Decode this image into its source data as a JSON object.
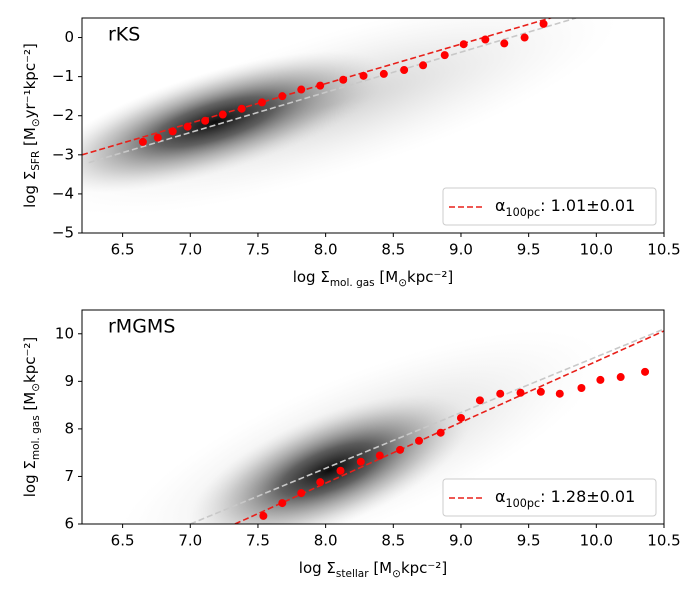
{
  "chart_data": [
    {
      "type": "scatter",
      "title": "rKS",
      "xlabel": [
        "log Σ",
        "mol. gas",
        " [M",
        "⊙",
        "kpc⁻²]"
      ],
      "ylabel": [
        "log Σ",
        "SFR",
        " [M",
        "⊙",
        "yr⁻¹kpc⁻²]"
      ],
      "xlim": [
        6.2,
        10.5
      ],
      "xticks": [
        6.5,
        {
          "value": 7,
          "label": "7.0"
        },
        7.5,
        {
          "value": 8,
          "label": "8.0"
        },
        8.5,
        {
          "value": 9,
          "label": "9.0"
        },
        9.5,
        {
          "value": 10,
          "label": "10.0"
        },
        10.5
      ],
      "ylim": [
        -5,
        0.5
      ],
      "yticks": [
        {
          "value": -5,
          "label": "−5"
        },
        {
          "value": -4,
          "label": "−4"
        },
        {
          "value": -3,
          "label": "−3"
        },
        {
          "value": -2,
          "label": "−2"
        },
        {
          "value": -1,
          "label": "−1"
        },
        0
      ],
      "points": {
        "color": "#ff0000",
        "x": [
          6.65,
          6.76,
          6.87,
          6.98,
          7.11,
          7.24,
          7.38,
          7.53,
          7.68,
          7.82,
          7.96,
          8.13,
          8.28,
          8.43,
          8.58,
          8.72,
          8.88,
          9.02,
          9.18,
          9.32,
          9.47,
          9.61
        ],
        "values": [
          -2.67,
          -2.56,
          -2.4,
          -2.28,
          -2.13,
          -1.97,
          -1.82,
          -1.66,
          -1.5,
          -1.33,
          -1.23,
          -1.08,
          -0.98,
          -0.93,
          -0.83,
          -0.71,
          -0.45,
          -0.17,
          -0.05,
          -0.15,
          0.0,
          0.35
        ]
      },
      "fit": {
        "color": "#e8201a",
        "x": [
          6.2,
          9.7
        ],
        "values": [
          -3.0,
          0.54
        ],
        "legend": [
          "α",
          "100pc",
          ": 1.01±0.01"
        ]
      },
      "reference": {
        "color": "#c8c8c8",
        "x": [
          6.25,
          9.85
        ],
        "values": [
          -3.2,
          0.5
        ]
      }
    },
    {
      "type": "scatter",
      "title": "rMGMS",
      "xlabel": [
        "log Σ",
        "stellar",
        " [M",
        "⊙",
        "kpc⁻²]"
      ],
      "ylabel": [
        "log Σ",
        "mol. gas",
        " [M",
        "⊙",
        "kpc⁻²]"
      ],
      "xlim": [
        6.2,
        10.5
      ],
      "xticks": [
        6.5,
        {
          "value": 7,
          "label": "7.0"
        },
        7.5,
        {
          "value": 8,
          "label": "8.0"
        },
        8.5,
        {
          "value": 9,
          "label": "9.0"
        },
        9.5,
        {
          "value": 10,
          "label": "10.0"
        },
        10.5
      ],
      "ylim": [
        6,
        10.5
      ],
      "yticks": [
        6,
        7,
        8,
        9,
        10
      ],
      "points": {
        "color": "#ff0000",
        "x": [
          7.54,
          7.68,
          7.82,
          7.96,
          8.11,
          8.26,
          8.4,
          8.55,
          8.69,
          8.85,
          9.0,
          9.14,
          9.29,
          9.44,
          9.59,
          9.73,
          9.89,
          10.03,
          10.18,
          10.36
        ],
        "values": [
          6.17,
          6.44,
          6.65,
          6.88,
          7.12,
          7.31,
          7.44,
          7.56,
          7.75,
          7.92,
          8.23,
          8.6,
          8.74,
          8.76,
          8.78,
          8.74,
          8.86,
          9.03,
          9.09,
          9.2
        ]
      },
      "fit": {
        "color": "#e8201a",
        "x": [
          7.33,
          10.5
        ],
        "values": [
          6.0,
          10.06
        ],
        "legend": [
          "α",
          "100pc",
          ": 1.28±0.01"
        ]
      },
      "reference": {
        "color": "#c8c8c8",
        "x": [
          7.0,
          10.5
        ],
        "values": [
          6.0,
          10.1
        ]
      }
    }
  ]
}
